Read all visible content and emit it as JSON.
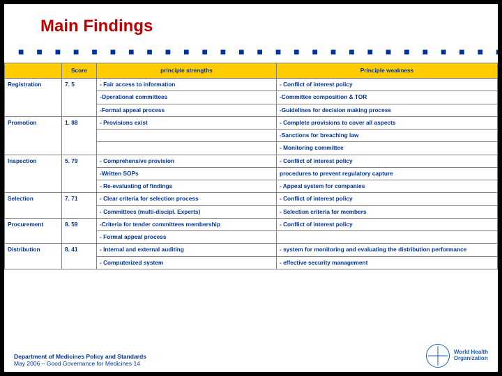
{
  "title": "Main Findings",
  "headers": {
    "score": "Score",
    "strengths": "principle strengths",
    "weakness": "Principle weakness"
  },
  "rows": [
    {
      "label": "Registration",
      "score": "7. 5",
      "strengths": [
        "- Fair access to information",
        "-Operational committees",
        "-Formal appeal process"
      ],
      "weakness": [
        "- Conflict of interest policy",
        "-Committee composition & TOR",
        "-Guidelines for decision making process"
      ]
    },
    {
      "label": "Promotion",
      "score": "1. 88",
      "strengths": [
        "- Provisions exist"
      ],
      "weakness": [
        "- Complete provisions to cover all aspects",
        "-Sanctions for breaching law",
        "- Monitoring committee"
      ]
    },
    {
      "label": "Inspection",
      "score": "5. 79",
      "strengths": [
        "- Comprehensive provision",
        "-Written SOPs",
        "- Re-evaluating of findings"
      ],
      "weakness": [
        "- Conflict of interest policy",
        "procedures to prevent regulatory capture",
        "- Appeal system for companies"
      ]
    },
    {
      "label": "Selection",
      "score": "7. 71",
      "strengths": [
        "- Clear criteria for selection process",
        "- Committees (multi-discipl. Experts)"
      ],
      "weakness": [
        "- Conflict of interest policy",
        "- Selection criteria for members"
      ]
    },
    {
      "label": "Procurement",
      "score": "8. 59",
      "strengths": [
        "-Criteria for tender committees membership",
        "- Formal appeal process"
      ],
      "weakness": [
        "- Conflict of interest policy"
      ]
    },
    {
      "label": "Distribution",
      "score": "8. 41",
      "strengths": [
        "- Internal and external auditing",
        "- Computerized system"
      ],
      "weakness": [
        "- system for monitoring and evaluating the distribution performance",
        "- effective security management"
      ]
    }
  ],
  "footer": {
    "line1": "Department of Medicines Policy and Standards",
    "line2": "May 2006 – Good Governance for Medicines 14"
  },
  "logo": {
    "line1": "World Health",
    "line2": "Organization"
  },
  "colors": {
    "title": "#c00000",
    "header_bg": "#ffcc00",
    "text": "#003399",
    "border": "#808080",
    "dots": "#003399",
    "logo": "#1a5fb4",
    "background": "#ffffff",
    "outer": "#000000"
  }
}
